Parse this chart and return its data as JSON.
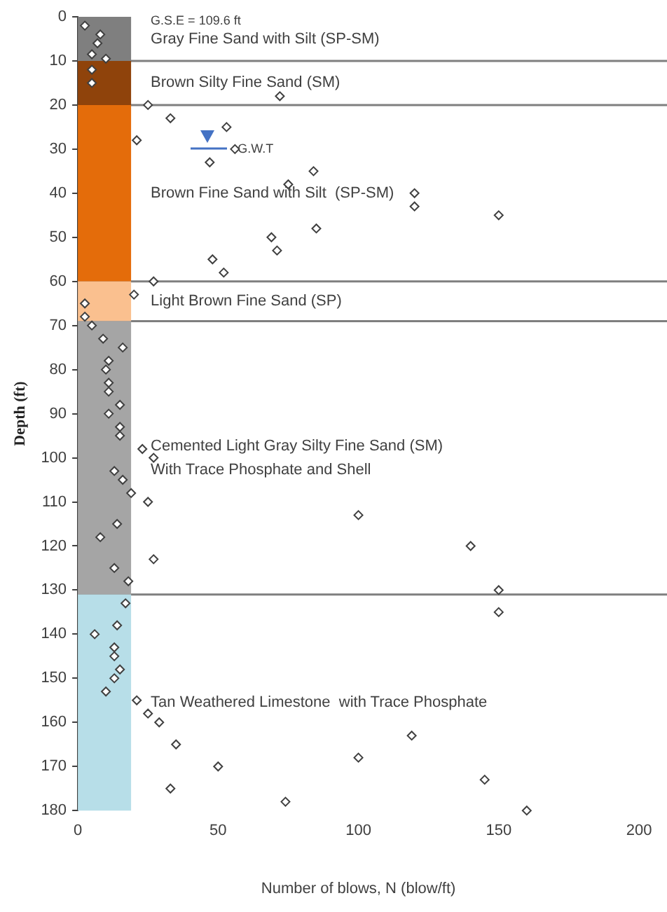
{
  "chart_data": {
    "type": "scatter",
    "xlabel": "Number of blows, N (blow/ft)",
    "ylabel": "Depth (ft)",
    "xlim": [
      0,
      200
    ],
    "xticks": [
      0,
      50,
      100,
      150,
      200
    ],
    "ylim": [
      180,
      0
    ],
    "yticks": [
      0,
      10,
      20,
      30,
      40,
      50,
      60,
      70,
      80,
      90,
      100,
      110,
      120,
      130,
      140,
      150,
      160,
      170,
      180
    ],
    "grid": false,
    "legend": false,
    "marker": "diamond",
    "series": [
      {
        "color": "#404040",
        "x": [
          2.5,
          8,
          7,
          5,
          10,
          5,
          5,
          72,
          25,
          33,
          53,
          21,
          56,
          47,
          84,
          75,
          120,
          120,
          150,
          69,
          71,
          85,
          48,
          52,
          27,
          20,
          2.5,
          2.5,
          5,
          9,
          16,
          11,
          10,
          11,
          11,
          15,
          11,
          15,
          15,
          23,
          27,
          13,
          16,
          19,
          25,
          100,
          14,
          8,
          140,
          27,
          13,
          18,
          150,
          150,
          17,
          14,
          6,
          13,
          13,
          15,
          13,
          10,
          21,
          25,
          29,
          35,
          50,
          33,
          74,
          100,
          119,
          145,
          160
        ],
        "values": [
          2,
          4,
          6,
          8.5,
          9.5,
          12,
          15,
          18,
          20,
          23,
          25,
          28,
          30,
          33,
          35,
          38,
          40,
          43,
          45,
          50,
          53,
          48,
          55,
          58,
          60,
          63,
          65,
          68,
          70,
          73,
          75,
          78,
          80,
          83,
          85,
          88,
          90,
          93,
          95,
          98,
          100,
          103,
          105,
          108,
          110,
          113,
          115,
          118,
          120,
          123,
          125,
          128,
          130,
          135,
          133,
          138,
          140,
          143,
          145,
          148,
          150,
          153,
          155,
          158,
          160,
          165,
          170,
          175,
          178,
          168,
          163,
          173,
          180
        ]
      }
    ],
    "bands": [
      {
        "axis": "y",
        "from": 0,
        "to": 10,
        "color": "#7f7f7f",
        "label": "Gray Fine Sand with Silt (SP-SM)"
      },
      {
        "axis": "y",
        "from": 10,
        "to": 20,
        "color": "#8f430b",
        "label": "Brown Silty Fine Sand (SM)"
      },
      {
        "axis": "y",
        "from": 20,
        "to": 60,
        "color": "#e46c0a",
        "label": "Brown Fine Sand with Silt  (SP-SM)"
      },
      {
        "axis": "y",
        "from": 60,
        "to": 69,
        "color": "#fac08f",
        "label": "Light Brown Fine Sand (SP)"
      },
      {
        "axis": "y",
        "from": 69,
        "to": 131,
        "color": "#a5a5a5",
        "label": "Cemented Light Gray Silty Fine Sand (SM)\nWith Trace Phosphate and Shell"
      },
      {
        "axis": "y",
        "from": 131,
        "to": 180,
        "color": "#b7dee8",
        "label": "Tan Weathered Limestone  with Trace Phosphate"
      }
    ],
    "ref_lines": [
      {
        "axis": "y",
        "value": 10,
        "color": "#7f7f7f"
      },
      {
        "axis": "y",
        "value": 20,
        "color": "#7f7f7f"
      },
      {
        "axis": "y",
        "value": 60,
        "color": "#7f7f7f"
      },
      {
        "axis": "y",
        "value": 69,
        "color": "#7f7f7f"
      },
      {
        "axis": "y",
        "value": 131,
        "color": "#7f7f7f"
      }
    ],
    "annotations": [
      "G.S.E = 109.6 ft",
      {
        "text": "G.W.T",
        "x": 57,
        "y": 30
      }
    ]
  }
}
